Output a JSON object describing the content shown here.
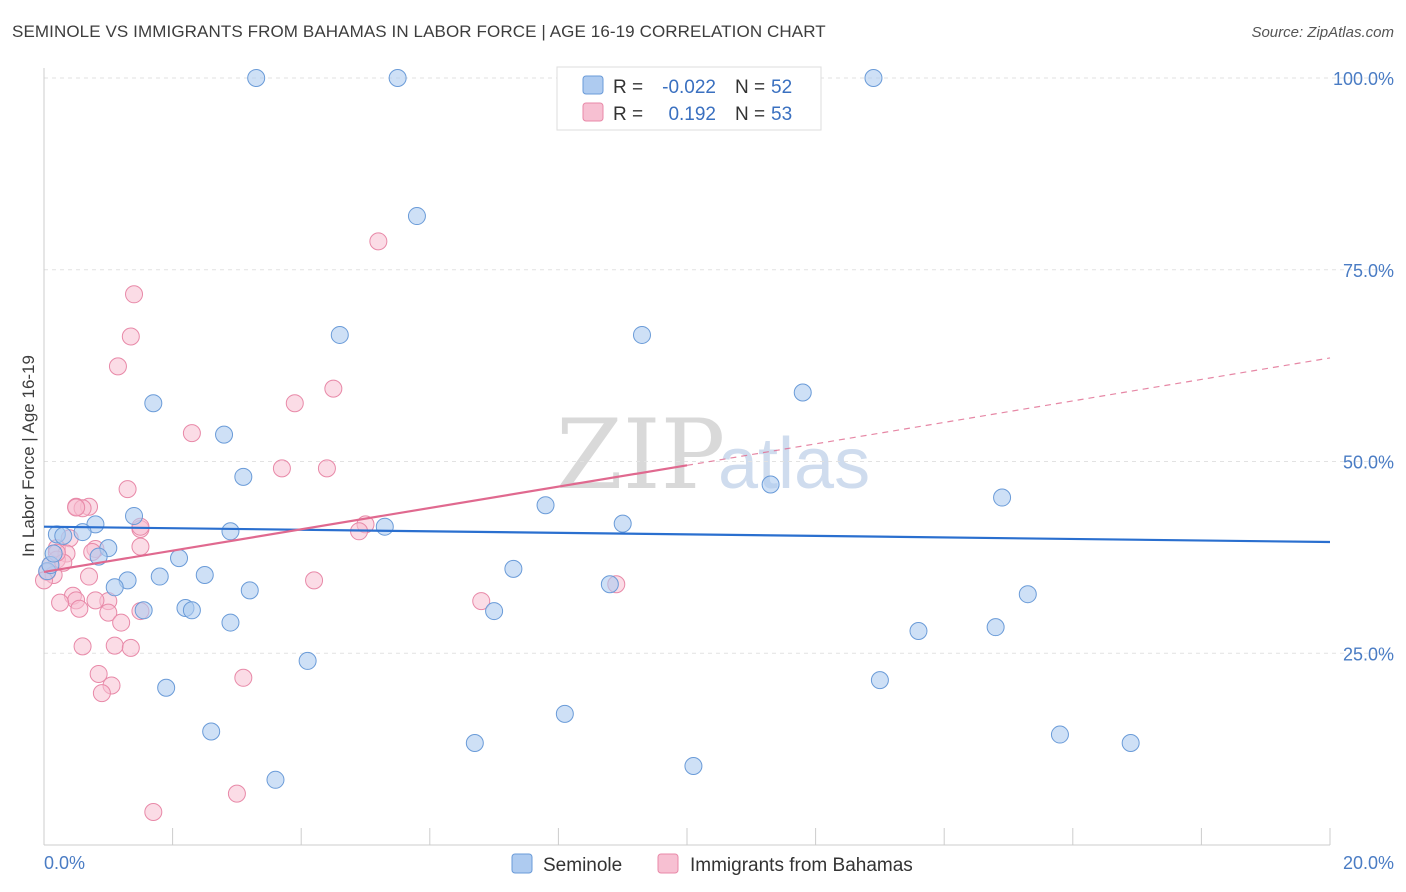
{
  "title": "SEMINOLE VS IMMIGRANTS FROM BAHAMAS IN LABOR FORCE | AGE 16-19 CORRELATION CHART",
  "source": "Source: ZipAtlas.com",
  "watermark": {
    "zip": "ZIP",
    "atlas": "atlas"
  },
  "colors": {
    "seminole_fill": "#aecbf0",
    "seminole_stroke": "#6a9bd8",
    "seminole_line": "#2a6fcf",
    "bahamas_fill": "#f7c0d2",
    "bahamas_stroke": "#e889a8",
    "bahamas_line": "#e0698f"
  },
  "legend": {
    "rows": [
      {
        "r_label": "R =",
        "r_value": "-0.022",
        "n_label": "N =",
        "n_value": "52"
      },
      {
        "r_label": "R =",
        "r_value": "0.192",
        "n_label": "N =",
        "n_value": "53"
      }
    ]
  },
  "chart_data": {
    "type": "scatter",
    "xlabel": "",
    "ylabel": "In Labor Force | Age 16-19",
    "xlim": [
      0,
      20
    ],
    "ylim": [
      0,
      100
    ],
    "x_tick_labels": [
      "0.0%",
      "20.0%"
    ],
    "y_tick_labels": [
      "100.0%",
      "75.0%",
      "50.0%",
      "25.0%"
    ],
    "y_tick_values": [
      100,
      75,
      50,
      25
    ],
    "grid": true,
    "legend_position": "top-center",
    "series": [
      {
        "name": "Seminole",
        "r": -0.022,
        "n": 52,
        "trend": {
          "x": [
            0,
            20
          ],
          "y": [
            41.5,
            39.5
          ]
        },
        "points": [
          [
            3.3,
            100
          ],
          [
            5.5,
            100
          ],
          [
            12.9,
            100
          ],
          [
            5.8,
            82
          ],
          [
            4.6,
            66.5
          ],
          [
            9.3,
            66.5
          ],
          [
            1.7,
            57.6
          ],
          [
            11.8,
            59
          ],
          [
            2.8,
            53.5
          ],
          [
            3.1,
            48
          ],
          [
            11.3,
            47
          ],
          [
            14.9,
            45.3
          ],
          [
            7.8,
            44.3
          ],
          [
            1.4,
            42.9
          ],
          [
            0.8,
            41.8
          ],
          [
            9.0,
            41.9
          ],
          [
            5.3,
            41.5
          ],
          [
            2.9,
            40.9
          ],
          [
            0.2,
            40.5
          ],
          [
            0.6,
            40.8
          ],
          [
            0.3,
            40.3
          ],
          [
            1.0,
            38.7
          ],
          [
            0.85,
            37.6
          ],
          [
            2.1,
            37.4
          ],
          [
            0.05,
            35.7
          ],
          [
            1.8,
            35.0
          ],
          [
            2.5,
            35.2
          ],
          [
            1.3,
            34.5
          ],
          [
            1.1,
            33.6
          ],
          [
            3.2,
            33.2
          ],
          [
            8.8,
            34.0
          ],
          [
            7.3,
            36.0
          ],
          [
            15.3,
            32.7
          ],
          [
            2.2,
            30.9
          ],
          [
            2.3,
            30.6
          ],
          [
            1.55,
            30.6
          ],
          [
            7.0,
            30.5
          ],
          [
            2.9,
            29.0
          ],
          [
            13.6,
            27.9
          ],
          [
            14.8,
            28.4
          ],
          [
            4.1,
            24.0
          ],
          [
            1.9,
            20.5
          ],
          [
            13.0,
            21.5
          ],
          [
            8.1,
            17.1
          ],
          [
            2.6,
            14.8
          ],
          [
            6.7,
            13.3
          ],
          [
            15.8,
            14.4
          ],
          [
            16.9,
            13.3
          ],
          [
            10.1,
            10.3
          ],
          [
            3.6,
            8.5
          ],
          [
            0.1,
            36.5
          ],
          [
            0.15,
            38.0
          ]
        ]
      },
      {
        "name": "Immigrants from Bahamas",
        "r": 0.192,
        "n": 53,
        "trend": {
          "x": [
            0,
            10.0
          ],
          "y": [
            35.6,
            49.5
          ]
        },
        "trend_dashed": {
          "x": [
            10.0,
            20
          ],
          "y": [
            49.5,
            63.5
          ]
        },
        "points": [
          [
            5.2,
            78.7
          ],
          [
            1.4,
            71.8
          ],
          [
            1.35,
            66.3
          ],
          [
            1.15,
            62.4
          ],
          [
            3.9,
            57.6
          ],
          [
            4.5,
            59.5
          ],
          [
            2.3,
            53.7
          ],
          [
            3.7,
            49.1
          ],
          [
            4.4,
            49.1
          ],
          [
            1.3,
            46.4
          ],
          [
            0.5,
            44.1
          ],
          [
            0.7,
            44.1
          ],
          [
            0.6,
            43.9
          ],
          [
            5.0,
            41.8
          ],
          [
            4.9,
            40.9
          ],
          [
            1.5,
            41.2
          ],
          [
            0.4,
            40.0
          ],
          [
            0.2,
            38.7
          ],
          [
            0.35,
            38.0
          ],
          [
            0.8,
            38.6
          ],
          [
            0.75,
            38.2
          ],
          [
            1.5,
            38.9
          ],
          [
            0.2,
            37.2
          ],
          [
            0.1,
            36.5
          ],
          [
            0.3,
            36.8
          ],
          [
            0.05,
            35.6
          ],
          [
            0.15,
            35.2
          ],
          [
            0.7,
            35.0
          ],
          [
            4.2,
            34.5
          ],
          [
            8.9,
            34.0
          ],
          [
            0.45,
            32.5
          ],
          [
            0.5,
            31.9
          ],
          [
            0.25,
            31.6
          ],
          [
            1.0,
            31.8
          ],
          [
            0.8,
            31.9
          ],
          [
            6.8,
            31.8
          ],
          [
            0.55,
            30.8
          ],
          [
            1.5,
            30.5
          ],
          [
            1.0,
            30.3
          ],
          [
            1.2,
            29.0
          ],
          [
            0.6,
            25.9
          ],
          [
            1.1,
            26.0
          ],
          [
            1.35,
            25.7
          ],
          [
            0.85,
            22.3
          ],
          [
            3.1,
            21.8
          ],
          [
            1.05,
            20.8
          ],
          [
            0.9,
            19.8
          ],
          [
            3.0,
            6.7
          ],
          [
            1.7,
            4.3
          ],
          [
            0.0,
            34.5
          ],
          [
            1.5,
            41.5
          ],
          [
            0.5,
            44.0
          ],
          [
            0.2,
            38.1
          ]
        ]
      }
    ]
  },
  "bottom_legend": [
    "Seminole",
    "Immigrants from Bahamas"
  ]
}
